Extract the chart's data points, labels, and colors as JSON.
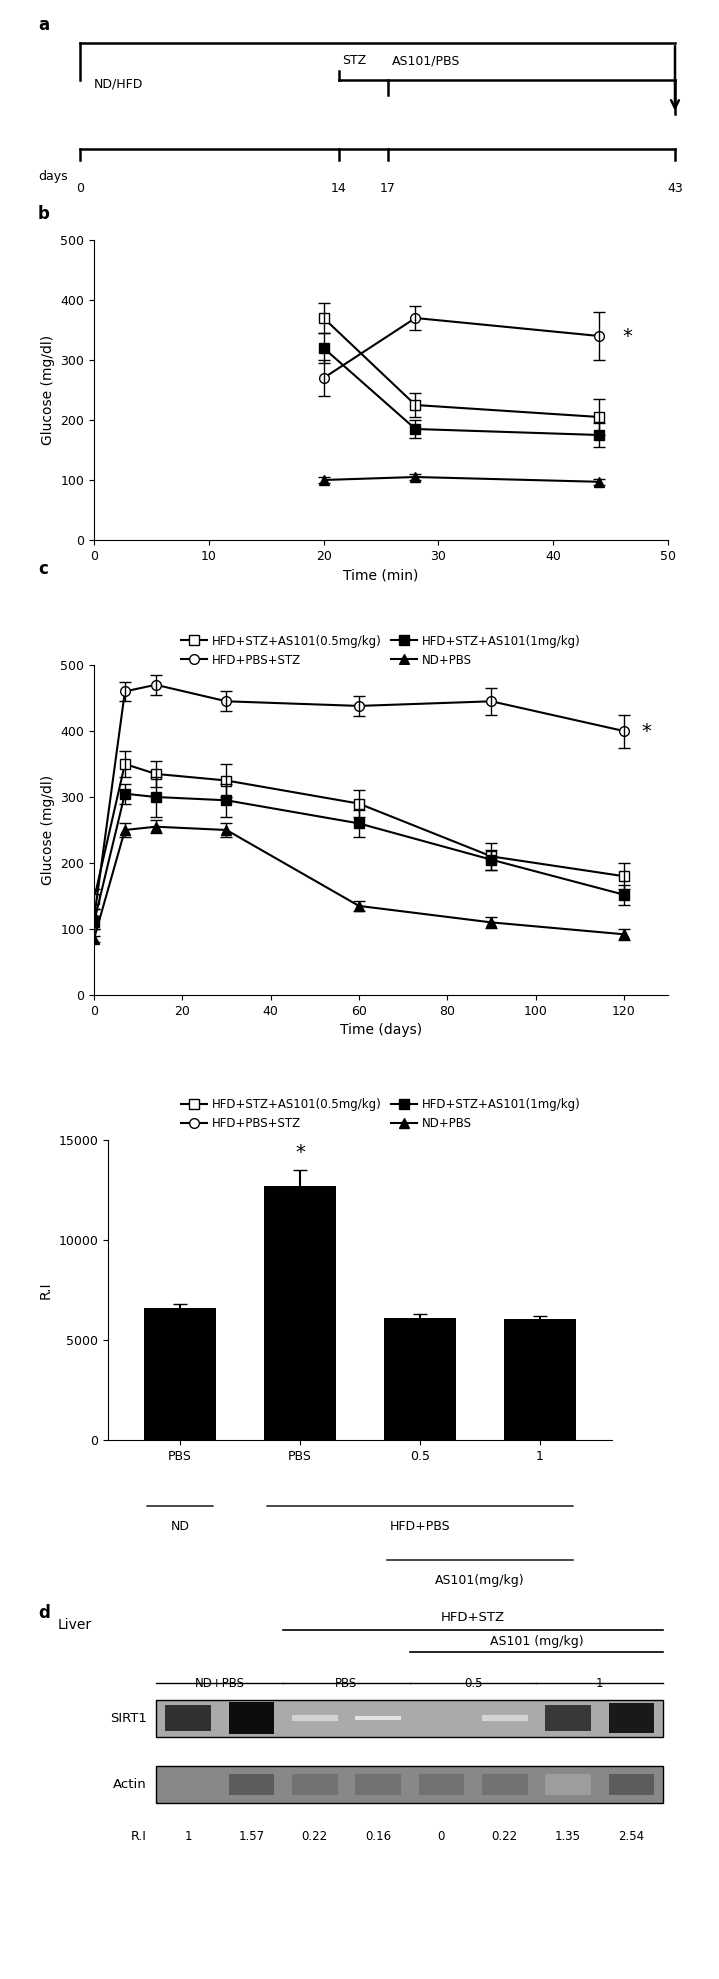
{
  "panel_b": {
    "label": "b",
    "xlabel": "Time (min)",
    "ylabel": "Glucose (mg/dl)",
    "ylim": [
      0,
      500
    ],
    "yticks": [
      0,
      100,
      200,
      300,
      400,
      500
    ],
    "xlim": [
      0,
      50
    ],
    "xticks": [
      0,
      10,
      20,
      30,
      40,
      50
    ],
    "series": {
      "HFD+STZ+AS101(0.5mg/kg)": {
        "x": [
          20,
          28,
          44
        ],
        "y": [
          370,
          225,
          205
        ],
        "yerr": [
          25,
          20,
          30
        ]
      },
      "HFD+PBS+STZ": {
        "x": [
          20,
          28,
          44
        ],
        "y": [
          270,
          370,
          340
        ],
        "yerr": [
          30,
          20,
          40
        ]
      },
      "HFD+STZ+AS101(1mg/kg)": {
        "x": [
          20,
          28,
          44
        ],
        "y": [
          320,
          185,
          175
        ],
        "yerr": [
          25,
          15,
          20
        ]
      },
      "ND+PBS": {
        "x": [
          20,
          28,
          44
        ],
        "y": [
          100,
          105,
          97
        ],
        "yerr": [
          5,
          5,
          5
        ]
      }
    },
    "star_x": 46,
    "star_y": 340,
    "legend_order": [
      "HFD+STZ+AS101(0.5mg/kg)",
      "HFD+PBS+STZ",
      "HFD+STZ+AS101(1mg/kg)",
      "ND+PBS"
    ]
  },
  "panel_c": {
    "label": "c",
    "xlabel": "Time (days)",
    "ylabel": "Glucose (mg/dl)",
    "ylim": [
      0,
      500
    ],
    "yticks": [
      0,
      100,
      200,
      300,
      400,
      500
    ],
    "xlim": [
      0,
      130
    ],
    "xticks": [
      0,
      20,
      40,
      60,
      80,
      100,
      120
    ],
    "series": {
      "HFD+STZ+AS101(0.5mg/kg)": {
        "x": [
          0,
          7,
          14,
          30,
          60,
          90,
          120
        ],
        "y": [
          145,
          350,
          335,
          325,
          290,
          210,
          180
        ],
        "yerr": [
          15,
          20,
          20,
          25,
          20,
          20,
          20
        ]
      },
      "HFD+PBS+STZ": {
        "x": [
          0,
          7,
          14,
          30,
          60,
          90,
          120
        ],
        "y": [
          115,
          460,
          470,
          445,
          438,
          445,
          400
        ],
        "yerr": [
          15,
          15,
          15,
          15,
          15,
          20,
          25
        ]
      },
      "HFD+STZ+AS101(1mg/kg)": {
        "x": [
          0,
          7,
          14,
          30,
          60,
          90,
          120
        ],
        "y": [
          110,
          305,
          300,
          295,
          260,
          205,
          152
        ],
        "yerr": [
          10,
          15,
          30,
          25,
          20,
          15,
          15
        ]
      },
      "ND+PBS": {
        "x": [
          0,
          7,
          14,
          30,
          60,
          90,
          120
        ],
        "y": [
          85,
          250,
          255,
          250,
          135,
          110,
          92
        ],
        "yerr": [
          5,
          10,
          10,
          10,
          8,
          8,
          8
        ]
      }
    },
    "star_x": 124,
    "star_y": 400,
    "legend_order": [
      "HFD+STZ+AS101(0.5mg/kg)",
      "HFD+PBS+STZ",
      "HFD+STZ+AS101(1mg/kg)",
      "ND+PBS"
    ]
  },
  "panel_bar": {
    "values": [
      6600,
      12700,
      6100,
      6050
    ],
    "yerr": [
      200,
      800,
      200,
      150
    ],
    "ylabel": "R.I",
    "ylim": [
      0,
      15000
    ],
    "yticks": [
      0,
      5000,
      10000,
      15000
    ],
    "bar_labels": [
      "PBS",
      "PBS",
      "0.5",
      "1"
    ]
  },
  "panel_d": {
    "label": "d",
    "title": "Liver",
    "hfd_stz_label": "HFD+STZ",
    "as101_label": "AS101 (mg/kg)",
    "col_group_labels": [
      "ND+PBS",
      "PBS",
      "0.5",
      "1"
    ],
    "row_labels": [
      "SIRT1",
      "Actin"
    ],
    "ri_values": [
      "1",
      "1.57",
      "0.22",
      "0.16",
      "0",
      "0.22",
      "1.35",
      "2.54"
    ],
    "ri_label": "R.I",
    "sirt1_intensities": [
      0.85,
      1.0,
      0.18,
      0.12,
      0.02,
      0.18,
      0.82,
      0.95
    ],
    "actin_intensities": [
      0.55,
      0.75,
      0.65,
      0.65,
      0.65,
      0.65,
      0.45,
      0.75
    ],
    "sirt1_bg": 0.65,
    "actin_bg": 0.75
  }
}
